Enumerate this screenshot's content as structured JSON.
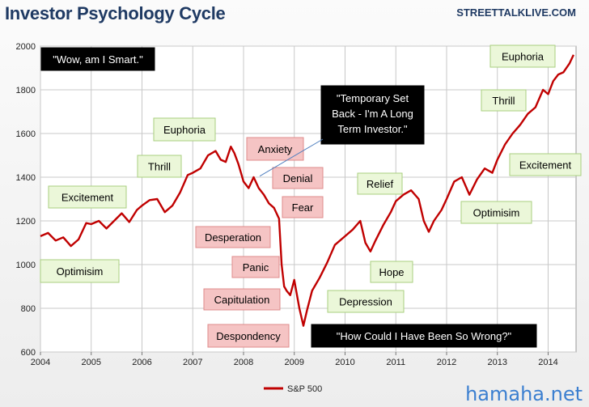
{
  "header": {
    "title": "Investor Psychology Cycle",
    "source": "STREETTALKLIVE.COM",
    "watermark": "hamaha.net"
  },
  "colors": {
    "line": "#c00000",
    "green_box": "#ebf7d9",
    "green_border": "#a9cf7f",
    "red_box": "#f5c4c4",
    "red_border": "#df8b8b",
    "black_box": "#000000",
    "title": "#1f3a63"
  },
  "chart_data": {
    "type": "line",
    "title": "Investor Psychology Cycle",
    "xlim": [
      2004.0,
      2014.55
    ],
    "ylim": [
      600,
      2000
    ],
    "x_ticks": [
      "2004",
      "2005",
      "2006",
      "2007",
      "2008",
      "2009",
      "2010",
      "2011",
      "2012",
      "2013",
      "2014"
    ],
    "y_ticks": [
      "600",
      "800",
      "1000",
      "1200",
      "1400",
      "1600",
      "1800",
      "2000"
    ],
    "grid": true,
    "legend_position": "bottom-center",
    "series": [
      {
        "name": "S&P 500",
        "x": [
          2004.0,
          2004.15,
          2004.3,
          2004.45,
          2004.6,
          2004.75,
          2004.9,
          2005.0,
          2005.15,
          2005.3,
          2005.45,
          2005.6,
          2005.75,
          2005.9,
          2006.0,
          2006.15,
          2006.3,
          2006.45,
          2006.6,
          2006.75,
          2006.9,
          2007.0,
          2007.15,
          2007.3,
          2007.45,
          2007.55,
          2007.65,
          2007.75,
          2007.82,
          2007.9,
          2008.0,
          2008.1,
          2008.2,
          2008.3,
          2008.4,
          2008.5,
          2008.6,
          2008.7,
          2008.75,
          2008.8,
          2008.85,
          2008.92,
          2009.0,
          2009.1,
          2009.18,
          2009.25,
          2009.35,
          2009.5,
          2009.65,
          2009.8,
          2010.0,
          2010.15,
          2010.3,
          2010.4,
          2010.5,
          2010.6,
          2010.75,
          2010.9,
          2011.0,
          2011.15,
          2011.3,
          2011.45,
          2011.55,
          2011.65,
          2011.75,
          2011.9,
          2012.0,
          2012.15,
          2012.3,
          2012.45,
          2012.6,
          2012.75,
          2012.9,
          2013.0,
          2013.15,
          2013.3,
          2013.45,
          2013.6,
          2013.75,
          2013.9,
          2014.0,
          2014.1,
          2014.2,
          2014.3,
          2014.42,
          2014.5
        ],
        "values": [
          1130,
          1145,
          1110,
          1125,
          1085,
          1115,
          1190,
          1185,
          1200,
          1165,
          1200,
          1235,
          1195,
          1250,
          1270,
          1295,
          1300,
          1240,
          1270,
          1330,
          1410,
          1420,
          1440,
          1500,
          1520,
          1480,
          1470,
          1540,
          1510,
          1460,
          1380,
          1350,
          1400,
          1350,
          1320,
          1280,
          1260,
          1210,
          1000,
          900,
          880,
          860,
          930,
          800,
          720,
          790,
          880,
          940,
          1010,
          1090,
          1130,
          1160,
          1200,
          1100,
          1060,
          1110,
          1180,
          1240,
          1290,
          1320,
          1340,
          1300,
          1200,
          1150,
          1200,
          1250,
          1300,
          1380,
          1400,
          1320,
          1390,
          1440,
          1420,
          1480,
          1550,
          1600,
          1640,
          1690,
          1720,
          1800,
          1780,
          1840,
          1870,
          1880,
          1920,
          1960
        ]
      }
    ],
    "annotations": [
      {
        "text": "\"Wow, am I Smart.\"",
        "style": "black"
      },
      {
        "text": "Optimisim",
        "style": "green"
      },
      {
        "text": "Excitement",
        "style": "green"
      },
      {
        "text": "Thrill",
        "style": "green"
      },
      {
        "text": "Euphoria",
        "style": "green"
      },
      {
        "text": "Anxiety",
        "style": "red"
      },
      {
        "text": "Denial",
        "style": "red"
      },
      {
        "text": "Fear",
        "style": "red"
      },
      {
        "text": "Desperation",
        "style": "red"
      },
      {
        "text": "Panic",
        "style": "red"
      },
      {
        "text": "Capitulation",
        "style": "red"
      },
      {
        "text": "Despondency",
        "style": "red"
      },
      {
        "text": "\"Temporary Set Back - I'm A Long Term Investor.\"",
        "style": "black"
      },
      {
        "text": "\"How Could I Have Been So Wrong?\"",
        "style": "black"
      },
      {
        "text": "Depression",
        "style": "green"
      },
      {
        "text": "Hope",
        "style": "green"
      },
      {
        "text": "Relief",
        "style": "green"
      },
      {
        "text": "Optimisim",
        "style": "green"
      },
      {
        "text": "Excitement",
        "style": "green"
      },
      {
        "text": "Thrill",
        "style": "green"
      },
      {
        "text": "Euphoria",
        "style": "green"
      }
    ]
  }
}
